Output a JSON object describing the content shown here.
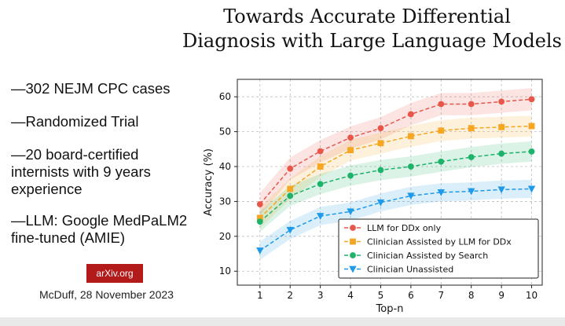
{
  "slide": {
    "title_line1": "Towards Accurate Differential",
    "title_line2": "Diagnosis with Large Language Models",
    "bullets": [
      "—302 NEJM CPC cases",
      "—Randomized Trial",
      "—20 board-certified internists with 9 years experience",
      "—LLM: Google MedPaLM2 fine-tuned (AMIE)"
    ],
    "badge": "arXiv.org",
    "byline": "McDuff, 28 November 2023",
    "badge_color": "#b31b1b"
  },
  "chart_data": {
    "type": "line",
    "title": "",
    "xlabel": "Top-n",
    "ylabel": "Accuracy (%)",
    "x": [
      1,
      2,
      3,
      4,
      5,
      6,
      7,
      8,
      9,
      10
    ],
    "xlim": [
      0.25,
      10.35
    ],
    "ylim": [
      6,
      65
    ],
    "yticks": [
      10,
      20,
      30,
      40,
      50,
      60
    ],
    "grid": true,
    "legend_position": "bottom-right",
    "series": [
      {
        "name": "LLM for DDx only",
        "color": "#e8564a",
        "marker": "circle",
        "values": [
          29.2,
          39.4,
          44.4,
          48.3,
          51.0,
          55.0,
          57.9,
          57.9,
          58.6,
          59.3
        ],
        "band": 3.2
      },
      {
        "name": "Clinician Assisted by LLM for DDx",
        "color": "#f5a623",
        "marker": "square",
        "values": [
          25.3,
          33.6,
          40.0,
          44.7,
          46.7,
          48.7,
          50.3,
          51.0,
          51.3,
          51.6
        ],
        "band": 3.0
      },
      {
        "name": "Clinician Assisted by Search",
        "color": "#1db36b",
        "marker": "circle",
        "values": [
          24.2,
          31.6,
          35.0,
          37.4,
          39.0,
          40.0,
          41.4,
          42.7,
          43.7,
          44.3
        ],
        "band": 2.9
      },
      {
        "name": "Clinician Unassisted",
        "color": "#1f9ae8",
        "marker": "triangle-down",
        "values": [
          15.9,
          21.8,
          25.8,
          27.1,
          29.7,
          31.6,
          32.6,
          32.9,
          33.4,
          33.6
        ],
        "band": 2.6
      }
    ]
  }
}
